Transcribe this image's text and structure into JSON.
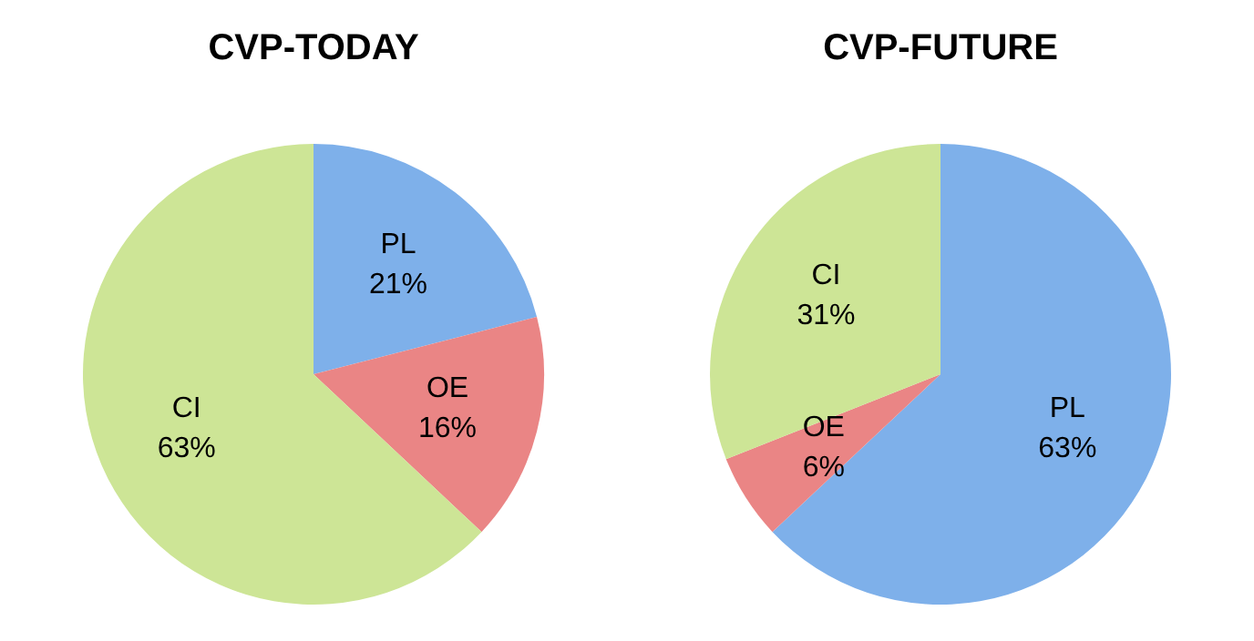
{
  "chart_data": [
    {
      "type": "pie",
      "title": "CVP-TODAY",
      "categories": [
        "PL",
        "OE",
        "CI"
      ],
      "values": [
        21,
        16,
        63
      ],
      "colors": [
        "#7eb0ea",
        "#ea8585",
        "#cde596"
      ],
      "value_labels": [
        "21%",
        "16%",
        "63%"
      ],
      "legend": false
    },
    {
      "type": "pie",
      "title": "CVP-FUTURE",
      "categories": [
        "PL",
        "OE",
        "CI"
      ],
      "values": [
        63,
        6,
        31
      ],
      "colors": [
        "#7eb0ea",
        "#ea8585",
        "#cde596"
      ],
      "value_labels": [
        "63%",
        "6%",
        "31%"
      ],
      "legend": false
    }
  ]
}
